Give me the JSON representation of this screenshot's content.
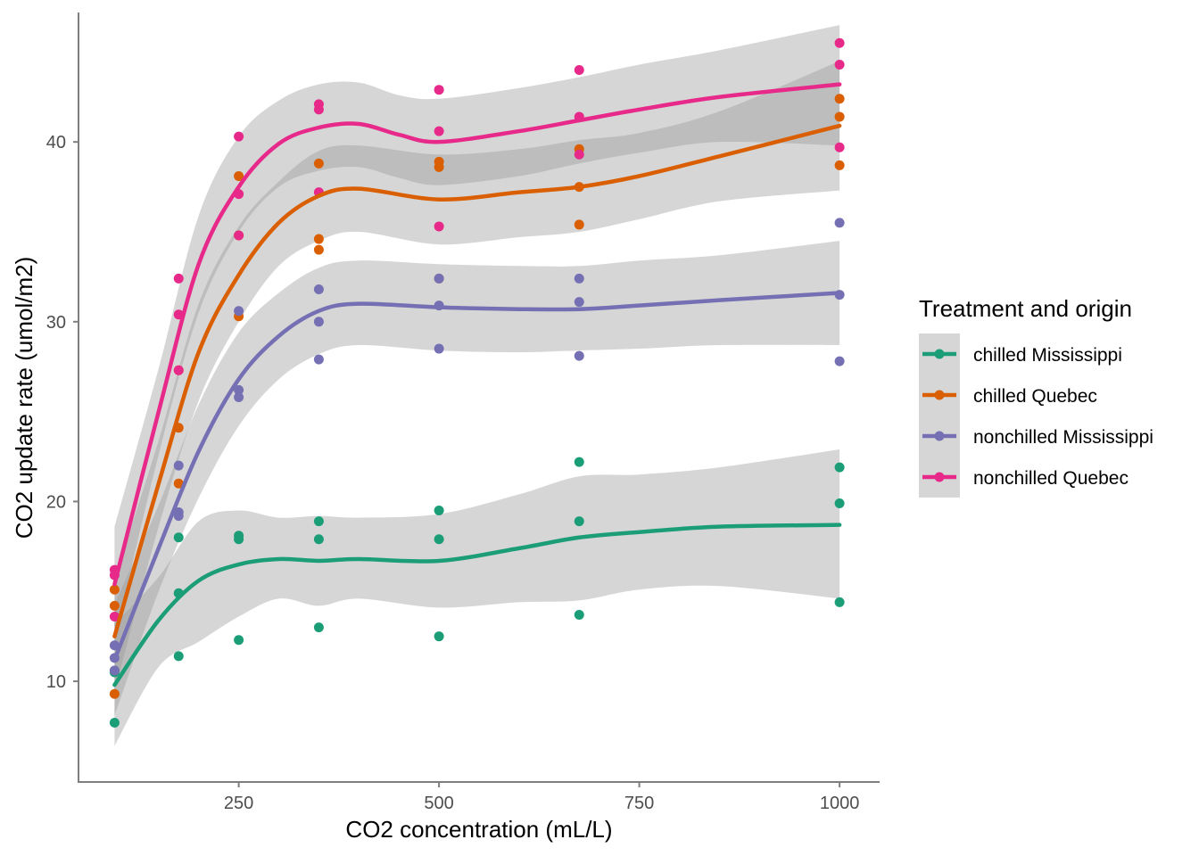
{
  "chart_data": {
    "type": "scatter",
    "xlabel": "CO2 concentration (mL/L)",
    "ylabel": "CO2 update rate (umol/m2)",
    "xlim": [
      50,
      1050
    ],
    "ylim": [
      4.4,
      47.2
    ],
    "x_ticks": [
      250,
      500,
      750,
      1000
    ],
    "y_ticks": [
      10,
      20,
      30,
      40
    ],
    "grid": false,
    "smoothing": "loess with grey confidence band",
    "legend": {
      "title": "Treatment and origin",
      "position": "right"
    },
    "series": [
      {
        "name": "chilled Mississippi",
        "color": "#1b9e77",
        "points": [
          [
            95,
            10.6
          ],
          [
            95,
            10.5
          ],
          [
            95,
            7.7
          ],
          [
            175,
            18.0
          ],
          [
            175,
            14.9
          ],
          [
            175,
            11.4
          ],
          [
            250,
            18.1
          ],
          [
            250,
            17.9
          ],
          [
            250,
            12.3
          ],
          [
            350,
            18.9
          ],
          [
            350,
            17.9
          ],
          [
            350,
            13.0
          ],
          [
            500,
            19.5
          ],
          [
            500,
            17.9
          ],
          [
            500,
            12.5
          ],
          [
            675,
            22.2
          ],
          [
            675,
            18.9
          ],
          [
            675,
            13.7
          ],
          [
            1000,
            21.9
          ],
          [
            1000,
            19.9
          ],
          [
            1000,
            14.4
          ]
        ],
        "smooth": [
          [
            95,
            9.8
          ],
          [
            150,
            13.4
          ],
          [
            200,
            15.6
          ],
          [
            250,
            16.5
          ],
          [
            300,
            16.8
          ],
          [
            350,
            16.7
          ],
          [
            400,
            16.8
          ],
          [
            500,
            16.7
          ],
          [
            600,
            17.4
          ],
          [
            675,
            18.0
          ],
          [
            750,
            18.3
          ],
          [
            850,
            18.6
          ],
          [
            1000,
            18.7
          ]
        ],
        "band": [
          [
            95,
            6.4,
            13.2
          ],
          [
            150,
            10.8,
            15.8
          ],
          [
            200,
            12.2,
            18.9
          ],
          [
            250,
            13.6,
            19.5
          ],
          [
            300,
            14.6,
            19.1
          ],
          [
            350,
            14.2,
            19.2
          ],
          [
            400,
            14.6,
            19.1
          ],
          [
            500,
            14.1,
            19.3
          ],
          [
            600,
            14.4,
            20.4
          ],
          [
            675,
            14.5,
            21.4
          ],
          [
            750,
            15.1,
            21.5
          ],
          [
            850,
            15.3,
            21.9
          ],
          [
            1000,
            14.6,
            22.9
          ]
        ]
      },
      {
        "name": "chilled Quebec",
        "color": "#d95f02",
        "points": [
          [
            95,
            15.1
          ],
          [
            95,
            14.2
          ],
          [
            95,
            9.3
          ],
          [
            175,
            27.3
          ],
          [
            175,
            24.1
          ],
          [
            175,
            21.0
          ],
          [
            250,
            38.1
          ],
          [
            250,
            34.8
          ],
          [
            250,
            30.3
          ],
          [
            350,
            38.8
          ],
          [
            350,
            34.6
          ],
          [
            350,
            34.0
          ],
          [
            500,
            38.9
          ],
          [
            500,
            38.6
          ],
          [
            500,
            32.4
          ],
          [
            675,
            39.6
          ],
          [
            675,
            37.5
          ],
          [
            675,
            35.4
          ],
          [
            1000,
            42.4
          ],
          [
            1000,
            41.4
          ],
          [
            1000,
            38.7
          ]
        ],
        "smooth": [
          [
            95,
            12.5
          ],
          [
            150,
            21.0
          ],
          [
            200,
            28.3
          ],
          [
            250,
            32.6
          ],
          [
            300,
            35.5
          ],
          [
            350,
            37.0
          ],
          [
            400,
            37.4
          ],
          [
            500,
            36.8
          ],
          [
            600,
            37.2
          ],
          [
            675,
            37.5
          ],
          [
            750,
            38.1
          ],
          [
            850,
            39.2
          ],
          [
            1000,
            40.9
          ]
        ],
        "band": [
          [
            95,
            9.4,
            15.7
          ],
          [
            150,
            18.6,
            23.4
          ],
          [
            200,
            25.6,
            31.0
          ],
          [
            250,
            30.0,
            35.3
          ],
          [
            300,
            33.1,
            37.8
          ],
          [
            350,
            34.5,
            39.5
          ],
          [
            400,
            35.0,
            39.8
          ],
          [
            500,
            34.3,
            39.3
          ],
          [
            600,
            34.7,
            39.6
          ],
          [
            675,
            35.0,
            40.1
          ],
          [
            750,
            35.7,
            40.5
          ],
          [
            850,
            36.7,
            41.7
          ],
          [
            1000,
            37.3,
            44.5
          ]
        ]
      },
      {
        "name": "nonchilled Mississippi",
        "color": "#7570b3",
        "points": [
          [
            95,
            12.0
          ],
          [
            95,
            11.3
          ],
          [
            95,
            10.6
          ],
          [
            175,
            22.0
          ],
          [
            175,
            19.4
          ],
          [
            175,
            19.2
          ],
          [
            250,
            30.6
          ],
          [
            250,
            26.2
          ],
          [
            250,
            25.8
          ],
          [
            350,
            31.8
          ],
          [
            350,
            30.0
          ],
          [
            350,
            27.9
          ],
          [
            500,
            32.4
          ],
          [
            500,
            30.9
          ],
          [
            500,
            28.5
          ],
          [
            675,
            32.4
          ],
          [
            675,
            31.1
          ],
          [
            675,
            28.1
          ],
          [
            1000,
            35.5
          ],
          [
            1000,
            31.5
          ],
          [
            1000,
            27.8
          ]
        ],
        "smooth": [
          [
            95,
            11.2
          ],
          [
            150,
            17.4
          ],
          [
            200,
            22.8
          ],
          [
            250,
            26.8
          ],
          [
            300,
            29.2
          ],
          [
            350,
            30.6
          ],
          [
            400,
            31.0
          ],
          [
            500,
            30.8
          ],
          [
            600,
            30.7
          ],
          [
            675,
            30.7
          ],
          [
            750,
            30.9
          ],
          [
            850,
            31.2
          ],
          [
            1000,
            31.6
          ]
        ],
        "band": [
          [
            95,
            8.1,
            14.3
          ],
          [
            150,
            15.0,
            19.8
          ],
          [
            200,
            20.2,
            25.4
          ],
          [
            250,
            24.2,
            29.4
          ],
          [
            300,
            26.8,
            31.6
          ],
          [
            350,
            28.2,
            33.0
          ],
          [
            400,
            28.7,
            33.4
          ],
          [
            500,
            28.4,
            33.2
          ],
          [
            600,
            28.3,
            33.1
          ],
          [
            675,
            28.4,
            33.1
          ],
          [
            750,
            28.5,
            33.4
          ],
          [
            850,
            28.7,
            33.7
          ],
          [
            1000,
            28.7,
            34.5
          ]
        ]
      },
      {
        "name": "nonchilled Quebec",
        "color": "#e7298a",
        "points": [
          [
            95,
            16.2
          ],
          [
            95,
            15.9
          ],
          [
            95,
            13.6
          ],
          [
            175,
            32.4
          ],
          [
            175,
            30.4
          ],
          [
            175,
            27.3
          ],
          [
            250,
            40.3
          ],
          [
            250,
            37.1
          ],
          [
            250,
            34.8
          ],
          [
            350,
            42.1
          ],
          [
            350,
            41.8
          ],
          [
            350,
            37.2
          ],
          [
            500,
            42.9
          ],
          [
            500,
            40.6
          ],
          [
            500,
            35.3
          ],
          [
            675,
            44.0
          ],
          [
            675,
            41.4
          ],
          [
            675,
            39.3
          ],
          [
            1000,
            45.5
          ],
          [
            1000,
            44.3
          ],
          [
            1000,
            39.7
          ]
        ],
        "smooth": [
          [
            95,
            15.4
          ],
          [
            150,
            25.0
          ],
          [
            200,
            33.2
          ],
          [
            250,
            37.5
          ],
          [
            300,
            39.9
          ],
          [
            350,
            40.8
          ],
          [
            400,
            41.0
          ],
          [
            450,
            40.4
          ],
          [
            500,
            40.0
          ],
          [
            600,
            40.6
          ],
          [
            675,
            41.2
          ],
          [
            750,
            41.8
          ],
          [
            850,
            42.5
          ],
          [
            1000,
            43.2
          ]
        ],
        "band": [
          [
            95,
            12.3,
            18.6
          ],
          [
            150,
            22.6,
            27.4
          ],
          [
            200,
            30.5,
            35.9
          ],
          [
            250,
            35.0,
            40.3
          ],
          [
            300,
            37.5,
            42.3
          ],
          [
            350,
            38.4,
            43.2
          ],
          [
            400,
            38.6,
            43.3
          ],
          [
            450,
            38.0,
            42.6
          ],
          [
            500,
            37.6,
            42.4
          ],
          [
            600,
            38.1,
            43.0
          ],
          [
            675,
            38.8,
            43.6
          ],
          [
            750,
            39.4,
            44.3
          ],
          [
            850,
            40.0,
            45.1
          ],
          [
            1000,
            39.8,
            46.5
          ]
        ]
      }
    ]
  }
}
